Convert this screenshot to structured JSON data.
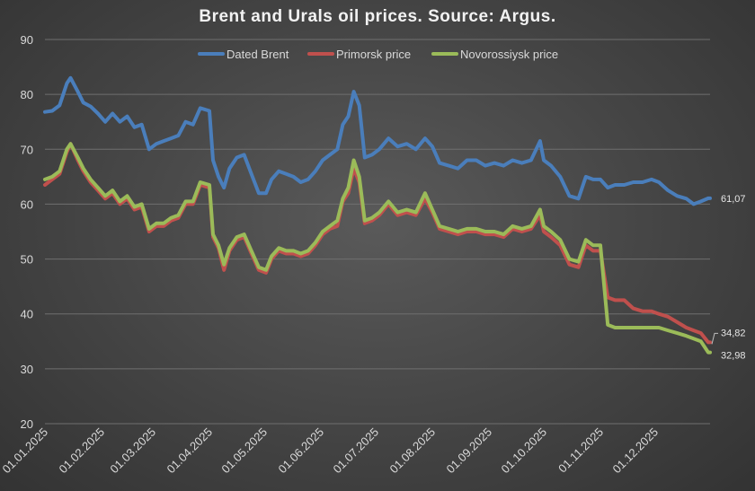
{
  "chart_data": {
    "type": "line",
    "title": "Brent and Urals oil prices. Source: Argus.",
    "xlabel": "",
    "ylabel": "",
    "ylim": [
      20,
      90
    ],
    "yticks": [
      "20",
      "30",
      "40",
      "50",
      "60",
      "70",
      "80",
      "90"
    ],
    "grid": "horizontal",
    "legend_position": "top",
    "xticks": [
      "01.01.2025",
      "01.02.2025",
      "01.03.2025",
      "01.04.2025",
      "01.05.2025",
      "01.06.2025",
      "01.07.2025",
      "01.08.2025",
      "01.09.2025",
      "01.10.2025",
      "01.11.2025",
      "01.12.2025"
    ],
    "x_dates": [
      "01.01.2025",
      "05.01.2025",
      "09.01.2025",
      "13.01.2025",
      "15.01.2025",
      "19.01.2025",
      "22.01.2025",
      "26.01.2025",
      "30.01.2025",
      "03.02.2025",
      "07.02.2025",
      "11.02.2025",
      "15.02.2025",
      "19.02.2025",
      "23.02.2025",
      "27.02.2025",
      "03.03.2025",
      "07.03.2025",
      "11.03.2025",
      "15.03.2025",
      "19.03.2025",
      "23.03.2025",
      "27.03.2025",
      "01.04.2025",
      "03.04.2025",
      "06.04.2025",
      "09.04.2025",
      "12.04.2025",
      "16.04.2025",
      "20.04.2025",
      "24.04.2025",
      "28.04.2025",
      "02.05.2025",
      "05.05.2025",
      "09.05.2025",
      "13.05.2025",
      "17.05.2025",
      "21.05.2025",
      "25.05.2025",
      "29.05.2025",
      "02.06.2025",
      "06.06.2025",
      "10.06.2025",
      "13.06.2025",
      "16.06.2025",
      "19.06.2025",
      "22.06.2025",
      "25.06.2025",
      "29.06.2025",
      "03.07.2025",
      "08.07.2025",
      "13.07.2025",
      "18.07.2025",
      "23.07.2025",
      "28.07.2025",
      "01.08.2025",
      "05.08.2025",
      "10.08.2025",
      "15.08.2025",
      "20.08.2025",
      "25.08.2025",
      "30.08.2025",
      "04.09.2025",
      "09.09.2025",
      "14.09.2025",
      "19.09.2025",
      "24.09.2025",
      "29.09.2025",
      "01.10.2025",
      "05.10.2025",
      "10.10.2025",
      "15.10.2025",
      "20.10.2025",
      "24.10.2025",
      "28.10.2025",
      "01.11.2025",
      "05.11.2025",
      "09.11.2025",
      "14.11.2025",
      "19.11.2025",
      "24.11.2025",
      "29.11.2025",
      "03.12.2025",
      "08.12.2025",
      "13.12.2025",
      "18.12.2025",
      "22.12.2025",
      "26.12.2025",
      "30.12.2025",
      "31.12.2025"
    ],
    "series": [
      {
        "name": "Dated Brent",
        "color": "#4a7ebb",
        "values": [
          76.8,
          77.0,
          78.0,
          82.0,
          83.0,
          80.5,
          78.5,
          77.8,
          76.5,
          75.0,
          76.5,
          75.0,
          76.0,
          74.0,
          74.5,
          70.0,
          71.0,
          71.5,
          72.0,
          72.5,
          75.0,
          74.5,
          77.5,
          77.0,
          68.0,
          65.0,
          63.0,
          66.5,
          68.5,
          69.0,
          65.5,
          62.0,
          62.0,
          64.5,
          66.0,
          65.5,
          65.0,
          64.0,
          64.5,
          66.0,
          68.0,
          69.0,
          70.0,
          74.5,
          76.0,
          80.5,
          78.0,
          68.5,
          69.0,
          70.0,
          72.0,
          70.5,
          71.0,
          70.0,
          72.0,
          70.5,
          67.5,
          67.0,
          66.5,
          68.0,
          68.0,
          67.0,
          67.5,
          67.0,
          68.0,
          67.5,
          68.0,
          71.5,
          68.0,
          67.0,
          65.0,
          61.5,
          61.0,
          65.0,
          64.5,
          64.5,
          63.0,
          63.5,
          63.5,
          64.0,
          64.0,
          64.5,
          64.0,
          62.5,
          61.5,
          61.0,
          60.0,
          60.5,
          61.07,
          61.07
        ]
      },
      {
        "name": "Primorsk price",
        "color": "#c0504d",
        "values": [
          63.5,
          64.5,
          65.5,
          69.5,
          71.0,
          68.0,
          66.0,
          64.0,
          62.5,
          61.0,
          62.0,
          60.0,
          61.0,
          59.0,
          59.5,
          55.0,
          56.0,
          56.0,
          57.0,
          57.5,
          60.0,
          60.0,
          63.5,
          63.0,
          54.0,
          52.0,
          48.0,
          51.5,
          53.5,
          54.0,
          51.0,
          48.0,
          47.5,
          50.0,
          51.5,
          51.0,
          51.0,
          50.5,
          51.0,
          52.5,
          54.5,
          55.5,
          56.0,
          60.5,
          62.0,
          66.5,
          64.0,
          56.5,
          57.0,
          58.0,
          60.0,
          58.0,
          58.5,
          58.0,
          61.0,
          58.5,
          55.5,
          55.0,
          54.5,
          55.0,
          55.0,
          54.5,
          54.5,
          54.0,
          55.5,
          55.0,
          55.5,
          58.0,
          55.0,
          54.0,
          52.5,
          49.0,
          48.5,
          52.5,
          51.5,
          51.5,
          43.0,
          42.5,
          42.5,
          41.0,
          40.5,
          40.5,
          40.0,
          39.5,
          38.5,
          37.5,
          37.0,
          36.5,
          34.82,
          34.82
        ]
      },
      {
        "name": "Novorossiysk price",
        "color": "#9bbb59",
        "values": [
          64.5,
          65.0,
          66.0,
          70.0,
          71.0,
          68.5,
          66.5,
          64.5,
          63.0,
          61.5,
          62.5,
          60.5,
          61.5,
          59.5,
          60.0,
          55.5,
          56.5,
          56.5,
          57.5,
          58.0,
          60.5,
          60.5,
          64.0,
          63.5,
          54.5,
          52.5,
          49.0,
          52.0,
          54.0,
          54.5,
          51.5,
          48.5,
          48.0,
          50.5,
          52.0,
          51.5,
          51.5,
          51.0,
          51.5,
          53.0,
          55.0,
          56.0,
          57.0,
          61.0,
          63.0,
          68.0,
          65.0,
          57.0,
          57.5,
          58.5,
          60.5,
          58.5,
          59.0,
          58.5,
          62.0,
          59.0,
          56.0,
          55.5,
          55.0,
          55.5,
          55.5,
          55.0,
          55.0,
          54.5,
          56.0,
          55.5,
          56.0,
          59.0,
          56.0,
          55.0,
          53.5,
          50.0,
          49.5,
          53.5,
          52.5,
          52.5,
          38.0,
          37.5,
          37.5,
          37.5,
          37.5,
          37.5,
          37.5,
          37.0,
          36.5,
          36.0,
          35.5,
          35.0,
          32.98,
          32.98
        ]
      }
    ],
    "end_labels": [
      "61,07",
      "34,82",
      "32,98"
    ]
  }
}
